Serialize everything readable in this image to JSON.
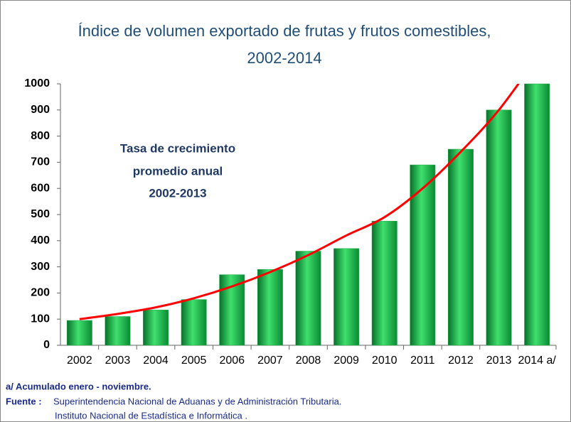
{
  "chart_data": {
    "type": "bar",
    "title": [
      "Índice de volumen exportado de frutas y frutos comestibles,",
      "2002-2014"
    ],
    "annotation": [
      "Tasa de crecimiento",
      "promedio anual",
      "2002-2013"
    ],
    "categories": [
      "2002",
      "2003",
      "2004",
      "2005",
      "2006",
      "2007",
      "2008",
      "2009",
      "2010",
      "2011",
      "2012",
      "2013",
      "2014 a/"
    ],
    "values": [
      95,
      110,
      135,
      175,
      270,
      290,
      360,
      370,
      475,
      690,
      750,
      900,
      1000
    ],
    "color": "#1cab45",
    "trend": {
      "color": "#ff0000",
      "values": [
        100,
        120,
        145,
        180,
        225,
        280,
        345,
        420,
        490,
        600,
        740,
        900,
        1100
      ]
    },
    "ylim": [
      0,
      1000
    ],
    "yticks": [
      0,
      100,
      200,
      300,
      400,
      500,
      600,
      700,
      800,
      900,
      1000
    ],
    "notes": {
      "footnote": "a/ Acumulado  enero - noviembre.",
      "source_label": "Fuente :",
      "sources": [
        "Superintendencia Nacional de Aduanas y de Administración Tributaria.",
        "Instituto  Nacional de Estadística e Informática ."
      ]
    }
  }
}
